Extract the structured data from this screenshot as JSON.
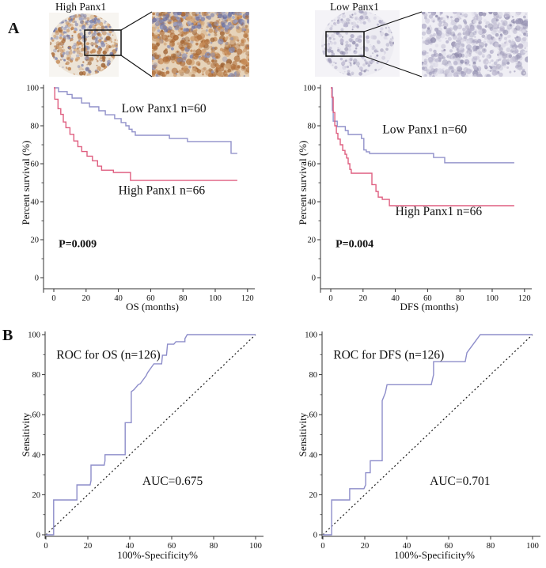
{
  "figure": {
    "panel_a_label": "A",
    "panel_b_label": "B",
    "histology": {
      "high": {
        "label": "High Panx1"
      },
      "low": {
        "label": "Low Panx1"
      }
    }
  },
  "colors": {
    "survival_low_line": "#9191ca",
    "survival_high_line": "#df5f80",
    "roc_line": "#8d8dca",
    "axis": "#333333",
    "reference_line": "#1a1a1a",
    "high_tissue_brown": "#b0713d",
    "high_tissue_blue": "#8186ad",
    "high_tissue_bg": "#ece3d6",
    "high_zoom_bg": "#e6d3ba",
    "low_tissue_purple": "#b7b3cc",
    "low_tissue_bg": "#edecf2",
    "low_zoom_bg": "#efeef4"
  },
  "chart_data": [
    {
      "id": "km-os",
      "type": "line",
      "subtype": "step",
      "xlabel": "OS (months)",
      "ylabel": "Percent survival (%)",
      "xlim": [
        0,
        125
      ],
      "ylim": [
        0,
        100
      ],
      "xticks": [
        0,
        20,
        40,
        60,
        80,
        100,
        120
      ],
      "yticks": [
        0,
        20,
        40,
        60,
        80,
        100
      ],
      "grid": false,
      "series": [
        {
          "name": "Low Panx1 n=60",
          "color": "#9191ca",
          "label_pos": [
            42,
            87
          ],
          "points": [
            [
              0,
              100
            ],
            [
              2.9,
              100
            ],
            [
              2.9,
              98
            ],
            [
              8.3,
              98
            ],
            [
              8.3,
              96.5
            ],
            [
              11.3,
              96.5
            ],
            [
              11.3,
              94.6
            ],
            [
              17.2,
              94.6
            ],
            [
              17.2,
              92
            ],
            [
              22.1,
              92
            ],
            [
              22.1,
              90
            ],
            [
              27.9,
              90
            ],
            [
              27.9,
              87.9
            ],
            [
              31.9,
              87.9
            ],
            [
              31.9,
              85.8
            ],
            [
              37.7,
              85.8
            ],
            [
              37.7,
              83.8
            ],
            [
              41.7,
              83.8
            ],
            [
              41.7,
              81.7
            ],
            [
              44.6,
              81.7
            ],
            [
              44.6,
              80
            ],
            [
              46.6,
              80
            ],
            [
              46.6,
              78.2
            ],
            [
              48.5,
              78.2
            ],
            [
              48.5,
              76.8
            ],
            [
              50.5,
              76.8
            ],
            [
              50.5,
              75
            ],
            [
              71.6,
              75
            ],
            [
              71.6,
              73.3
            ],
            [
              82.8,
              73.3
            ],
            [
              82.8,
              71.7
            ],
            [
              109.8,
              71.7
            ],
            [
              109.8,
              65.5
            ],
            [
              113.7,
              65.5
            ]
          ]
        },
        {
          "name": "High Panx1 n=66",
          "color": "#df5f80",
          "label_pos": [
            40,
            44
          ],
          "points": [
            [
              0,
              100
            ],
            [
              0.6,
              100
            ],
            [
              0.6,
              94
            ],
            [
              2.6,
              94
            ],
            [
              2.6,
              89
            ],
            [
              4.3,
              89
            ],
            [
              4.3,
              86
            ],
            [
              5.9,
              86
            ],
            [
              5.9,
              82
            ],
            [
              7.5,
              82
            ],
            [
              7.5,
              79
            ],
            [
              10,
              79
            ],
            [
              10,
              75.5
            ],
            [
              12.4,
              75.5
            ],
            [
              12.4,
              72
            ],
            [
              14.9,
              72
            ],
            [
              14.9,
              69
            ],
            [
              17.3,
              69
            ],
            [
              17.3,
              66.4
            ],
            [
              20.6,
              66.4
            ],
            [
              20.6,
              64
            ],
            [
              23.9,
              64
            ],
            [
              23.9,
              61.6
            ],
            [
              27.1,
              61.6
            ],
            [
              27.1,
              58.7
            ],
            [
              29.6,
              58.7
            ],
            [
              29.6,
              56.6
            ],
            [
              36.9,
              56.6
            ],
            [
              36.9,
              55.4
            ],
            [
              47.5,
              55.4
            ],
            [
              47.5,
              51.2
            ],
            [
              113.7,
              51.2
            ]
          ]
        }
      ],
      "annotations": [
        {
          "text": "P=0.009",
          "x": 3,
          "y": 16,
          "bold": true,
          "size": 14
        }
      ]
    },
    {
      "id": "km-dfs",
      "type": "line",
      "subtype": "step",
      "xlabel": "DFS (months)",
      "ylabel": "Percent survival (%)",
      "xlim": [
        0,
        125
      ],
      "ylim": [
        0,
        100
      ],
      "xticks": [
        0,
        20,
        40,
        60,
        80,
        100,
        120
      ],
      "yticks": [
        0,
        20,
        40,
        60,
        80,
        100
      ],
      "grid": false,
      "series": [
        {
          "name": "Low Panx1 n=60",
          "color": "#9191ca",
          "label_pos": [
            32,
            76
          ],
          "points": [
            [
              0,
              100
            ],
            [
              1,
              100
            ],
            [
              1,
              88
            ],
            [
              1.5,
              88
            ],
            [
              1.5,
              82.4
            ],
            [
              4,
              82.4
            ],
            [
              4,
              79.6
            ],
            [
              9,
              79.6
            ],
            [
              9,
              77.5
            ],
            [
              10.8,
              77.5
            ],
            [
              10.8,
              75.4
            ],
            [
              19,
              75.4
            ],
            [
              19,
              73.3
            ],
            [
              20.5,
              73.3
            ],
            [
              20.5,
              67.3
            ],
            [
              22,
              67.3
            ],
            [
              22,
              66.3
            ],
            [
              24,
              66.3
            ],
            [
              24,
              65.4
            ],
            [
              63.7,
              65.4
            ],
            [
              63.7,
              63.3
            ],
            [
              70.6,
              63.3
            ],
            [
              70.6,
              60.5
            ],
            [
              113.7,
              60.5
            ]
          ]
        },
        {
          "name": "High Panx1 n=66",
          "color": "#df5f80",
          "label_pos": [
            40,
            33
          ],
          "points": [
            [
              0,
              100
            ],
            [
              0.7,
              100
            ],
            [
              0.7,
              95
            ],
            [
              1.5,
              95
            ],
            [
              1.5,
              87
            ],
            [
              2.5,
              87
            ],
            [
              2.5,
              80
            ],
            [
              3.5,
              80
            ],
            [
              3.5,
              76
            ],
            [
              4.4,
              76
            ],
            [
              4.4,
              73
            ],
            [
              5.9,
              73
            ],
            [
              5.9,
              70
            ],
            [
              7.4,
              70
            ],
            [
              7.4,
              67
            ],
            [
              8.8,
              67
            ],
            [
              8.8,
              65
            ],
            [
              9.8,
              65
            ],
            [
              9.8,
              63
            ],
            [
              10.8,
              63
            ],
            [
              10.8,
              60
            ],
            [
              11.8,
              60
            ],
            [
              11.8,
              57
            ],
            [
              12.7,
              57
            ],
            [
              12.7,
              55
            ],
            [
              25.5,
              55
            ],
            [
              25.5,
              49
            ],
            [
              28,
              49
            ],
            [
              28,
              45.4
            ],
            [
              29.4,
              45.4
            ],
            [
              29.4,
              42.4
            ],
            [
              31.9,
              42.4
            ],
            [
              31.9,
              41.2
            ],
            [
              36.3,
              41.2
            ],
            [
              36.3,
              37.9
            ],
            [
              113.7,
              37.9
            ]
          ]
        }
      ],
      "annotations": [
        {
          "text": "P=0.004",
          "x": 3,
          "y": 16,
          "bold": true,
          "size": 14
        }
      ]
    },
    {
      "id": "roc-os",
      "type": "line",
      "subtype": "step",
      "title": "ROC for OS (n=126)",
      "title_pos": [
        5,
        88
      ],
      "xlabel": "100%-Specificity%",
      "ylabel": "Sensitivity",
      "xlim": [
        0,
        100
      ],
      "ylim": [
        0,
        100
      ],
      "xticks": [
        0,
        20,
        40,
        60,
        80,
        100
      ],
      "yticks": [
        0,
        20,
        40,
        60,
        80,
        100
      ],
      "grid": false,
      "diagonal": true,
      "auc": 0.675,
      "series": [
        {
          "name": "ROC curve OS",
          "color": "#8d8dca",
          "points": [
            [
              0,
              0
            ],
            [
              3.7,
              0
            ],
            [
              3.7,
              17.4
            ],
            [
              14.8,
              17.4
            ],
            [
              14.8,
              24.9
            ],
            [
              21.1,
              24.9
            ],
            [
              21.5,
              27
            ],
            [
              21.5,
              34.8
            ],
            [
              27.8,
              34.8
            ],
            [
              28.2,
              37
            ],
            [
              28.2,
              40
            ],
            [
              37.8,
              40
            ],
            [
              37.8,
              56
            ],
            [
              40.7,
              56
            ],
            [
              40.7,
              71.5
            ],
            [
              42,
              72.5
            ],
            [
              44,
              75
            ],
            [
              45,
              75.5
            ],
            [
              47.8,
              79.5
            ],
            [
              48.5,
              81
            ],
            [
              51.5,
              85.4
            ],
            [
              55.2,
              85.4
            ],
            [
              55.6,
              89.7
            ],
            [
              57.5,
              89.7
            ],
            [
              58,
              95.2
            ],
            [
              61,
              95.2
            ],
            [
              62,
              96.5
            ],
            [
              66.3,
              96.5
            ],
            [
              66.3,
              98
            ],
            [
              67.4,
              100
            ],
            [
              100,
              100
            ]
          ]
        }
      ],
      "annotations": [
        {
          "text": "AUC=0.675",
          "x": 46,
          "y": 25,
          "bold": false,
          "size": 15.5
        }
      ]
    },
    {
      "id": "roc-dfs",
      "type": "line",
      "subtype": "step",
      "title": "ROC for DFS (n=126)",
      "title_pos": [
        5,
        88
      ],
      "xlabel": "100%-Specificity%",
      "ylabel": "Sensitivity",
      "xlim": [
        0,
        100
      ],
      "ylim": [
        0,
        100
      ],
      "xticks": [
        0,
        20,
        40,
        60,
        80,
        100
      ],
      "yticks": [
        0,
        20,
        40,
        60,
        80,
        100
      ],
      "grid": false,
      "diagonal": true,
      "auc": 0.701,
      "series": [
        {
          "name": "ROC curve DFS",
          "color": "#8d8dca",
          "points": [
            [
              0,
              0
            ],
            [
              4.2,
              0
            ],
            [
              4.2,
              17.4
            ],
            [
              12.8,
              17.4
            ],
            [
              12.8,
              23
            ],
            [
              19.6,
              23
            ],
            [
              20.4,
              25
            ],
            [
              20.4,
              31
            ],
            [
              22.6,
              31
            ],
            [
              22.6,
              37
            ],
            [
              28.3,
              37
            ],
            [
              28.3,
              67
            ],
            [
              29.8,
              71
            ],
            [
              30.6,
              75
            ],
            [
              51.7,
              75
            ],
            [
              52.8,
              80
            ],
            [
              52.8,
              86.5
            ],
            [
              67.9,
              86.5
            ],
            [
              68.7,
              91
            ],
            [
              75.1,
              100
            ],
            [
              100,
              100
            ]
          ]
        }
      ],
      "annotations": [
        {
          "text": "AUC=0.701",
          "x": 51,
          "y": 25,
          "bold": false,
          "size": 15.5
        }
      ]
    }
  ]
}
